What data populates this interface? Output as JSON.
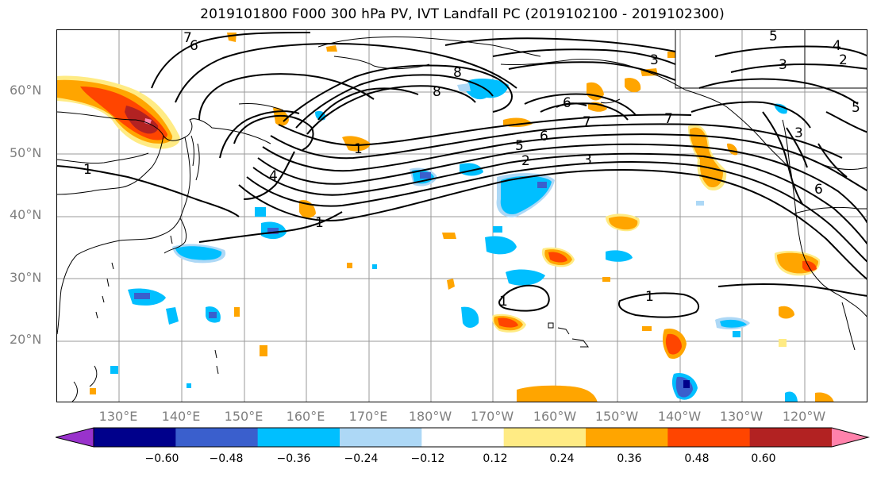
{
  "title": "2019101800 F000 300 hPa PV, IVT Landfall PC (2019102100 - 2019102300)",
  "latitude_labels": [
    "60°N",
    "50°N",
    "40°N",
    "30°N",
    "20°N"
  ],
  "longitude_labels": [
    "130°E",
    "140°E",
    "150°E",
    "160°E",
    "170°E",
    "180°W",
    "170°W",
    "160°W",
    "150°W",
    "140°W",
    "130°W",
    "120°W"
  ],
  "colorbar": {
    "ticks": [
      "−0.60",
      "−0.48",
      "−0.36",
      "−0.24",
      "−0.12",
      "0.12",
      "0.24",
      "0.36",
      "0.48",
      "0.60"
    ],
    "colors": [
      "#9932cc",
      "#00008b",
      "#3a5fcd",
      "#00bfff",
      "#add8f6",
      "#ffffff",
      "#ffeb84",
      "#ffa500",
      "#ff4500",
      "#b22222",
      "#ff82ab"
    ],
    "extend": "both"
  },
  "contour_labels": [
    "7",
    "6",
    "3",
    "5",
    "4",
    "2",
    "3",
    "8",
    "8",
    "6",
    "7",
    "6",
    "5",
    "2",
    "3",
    "7",
    "6",
    "5",
    "3",
    "4",
    "1",
    "1",
    "1",
    "1",
    "1"
  ]
}
